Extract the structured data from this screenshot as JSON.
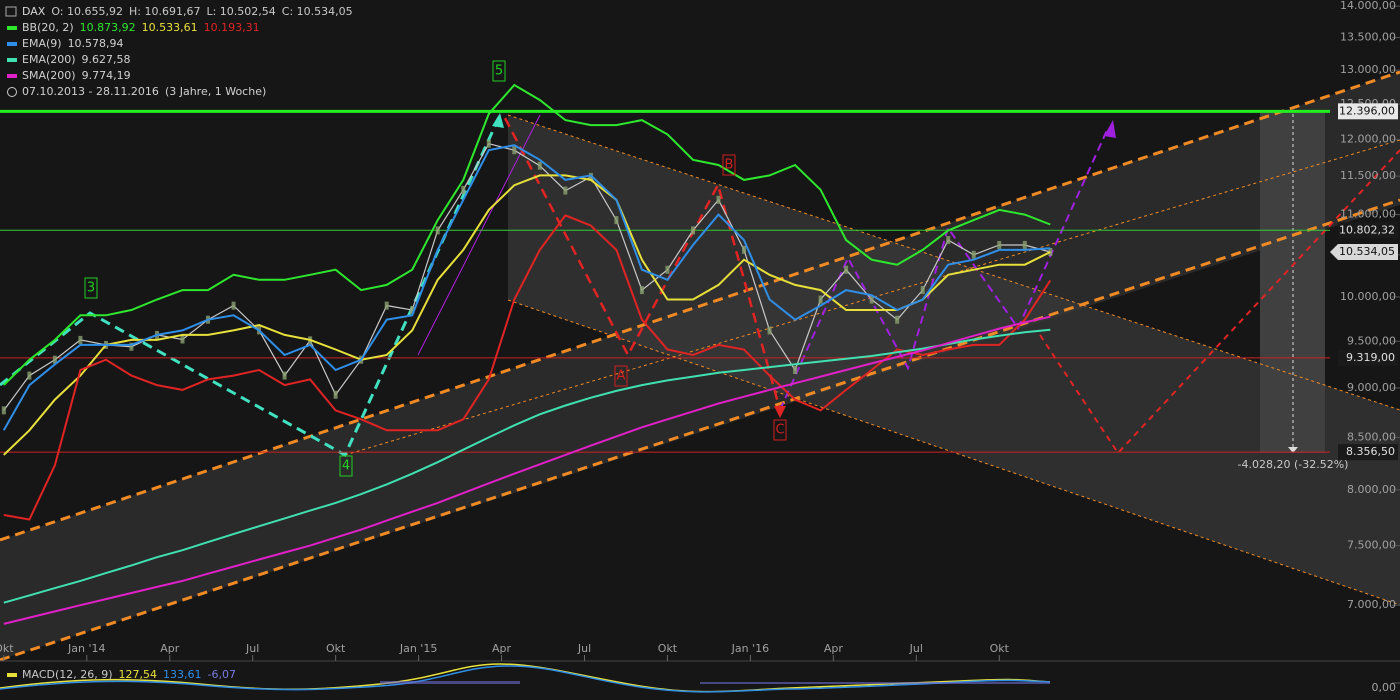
{
  "chart_data": {
    "type": "line",
    "title": "DAX",
    "period": "07.10.2013 - 28.11.2016",
    "period_note": "(3 Jahre, 1 Woche)",
    "log_scale": true,
    "ylim": [
      6570,
      14100
    ],
    "xlim": [
      -0.6,
      218.8
    ],
    "yticks": [
      {
        "value": 7000,
        "label": "7.000,00"
      },
      {
        "value": 7500,
        "label": "7.500,00"
      },
      {
        "value": 8000,
        "label": "8.000,00"
      },
      {
        "value": 8500,
        "label": "8.500,00"
      },
      {
        "value": 9000,
        "label": "9.000,00"
      },
      {
        "value": 9500,
        "label": "9.500,00"
      },
      {
        "value": 10000,
        "label": "10.000,00"
      },
      {
        "value": 10500,
        "label": "10.500,00"
      },
      {
        "value": 11000,
        "label": "11.000,00"
      },
      {
        "value": 11500,
        "label": "11.500,00"
      },
      {
        "value": 12000,
        "label": "12.000,00"
      },
      {
        "value": 12500,
        "label": "12.500,00"
      },
      {
        "value": 13000,
        "label": "13.000,00"
      },
      {
        "value": 13500,
        "label": "13.500,00"
      },
      {
        "value": 14000,
        "label": "14.000,00"
      }
    ],
    "xticks": [
      {
        "value": 0,
        "label": "Okt"
      },
      {
        "value": 13,
        "label": "Jan '14"
      },
      {
        "value": 26,
        "label": "Apr"
      },
      {
        "value": 39,
        "label": "Jul"
      },
      {
        "value": 52,
        "label": "Okt"
      },
      {
        "value": 65,
        "label": "Jan '15"
      },
      {
        "value": 78,
        "label": "Apr"
      },
      {
        "value": 91,
        "label": "Jul"
      },
      {
        "value": 104,
        "label": "Okt"
      },
      {
        "value": 117,
        "label": "Jan '16"
      },
      {
        "value": 130,
        "label": "Apr"
      },
      {
        "value": 143,
        "label": "Jul"
      },
      {
        "value": 156,
        "label": "Okt"
      }
    ],
    "x": [
      0,
      4,
      8,
      12,
      16,
      20,
      24,
      28,
      32,
      36,
      40,
      44,
      48,
      52,
      56,
      60,
      64,
      68,
      72,
      76,
      80,
      84,
      88,
      92,
      96,
      100,
      104,
      108,
      112,
      116,
      120,
      124,
      128,
      132,
      136,
      140,
      144,
      148,
      152,
      156,
      160,
      164
    ],
    "series": [
      {
        "name": "DAX",
        "color": "#c8c8c8",
        "legend_values": [
          "O: 10.655,92",
          "H: 10.691,67",
          "L: 10.502,54",
          "C: 10.534,05"
        ],
        "values": [
          8770,
          9130,
          9300,
          9515,
          9460,
          9440,
          9570,
          9520,
          9740,
          9900,
          9620,
          9130,
          9510,
          8930,
          9300,
          9900,
          9850,
          10800,
          11320,
          11940,
          11850,
          11640,
          11310,
          11490,
          10930,
          10080,
          10320,
          10800,
          11190,
          10560,
          9620,
          9190,
          9970,
          10320,
          9970,
          9740,
          10080,
          10680,
          10500,
          10620,
          10620,
          10534.05
        ]
      },
      {
        "name": "BB(20, 2)",
        "color": "#2ee82e",
        "middle_color": "#e8e03a",
        "lower_color": "#e02424",
        "legend_values": [
          "10.873,92",
          "10.533,61",
          "10.193,31"
        ],
        "values": [
          9030,
          9300,
          9515,
          9790,
          9790,
          9850,
          9970,
          10080,
          10080,
          10260,
          10200,
          10200,
          10260,
          10320,
          10080,
          10140,
          10320,
          10930,
          11450,
          12360,
          12780,
          12560,
          12270,
          12200,
          12200,
          12270,
          12070,
          11720,
          11650,
          11450,
          11510,
          11650,
          11320,
          10680,
          10440,
          10380,
          10560,
          10800,
          10930,
          11060,
          11000,
          10873.92
        ],
        "middle": [
          8330,
          8570,
          8880,
          9130,
          9460,
          9515,
          9515,
          9570,
          9570,
          9620,
          9680,
          9570,
          9515,
          9410,
          9300,
          9350,
          9620,
          10200,
          10560,
          11060,
          11380,
          11510,
          11510,
          11450,
          11190,
          10440,
          9970,
          9970,
          10140,
          10440,
          10260,
          10140,
          10080,
          9850,
          9850,
          9850,
          9970,
          10260,
          10320,
          10380,
          10380,
          10533.61
        ],
        "lower": [
          7770,
          7730,
          8230,
          9190,
          9300,
          9130,
          9030,
          8980,
          9090,
          9130,
          9190,
          9030,
          9090,
          8770,
          8680,
          8570,
          8570,
          8570,
          8680,
          9090,
          9970,
          10560,
          10990,
          10860,
          10560,
          9740,
          9410,
          9350,
          9460,
          9410,
          9130,
          8880,
          8770,
          8980,
          9190,
          9410,
          9350,
          9410,
          9460,
          9460,
          9740,
          10193.31
        ]
      },
      {
        "name": "EMA(9)",
        "color": "#2f8fe8",
        "legend_values": [
          "10.578,94"
        ],
        "values": [
          8570,
          9030,
          9250,
          9460,
          9460,
          9460,
          9570,
          9620,
          9740,
          9790,
          9620,
          9350,
          9460,
          9190,
          9300,
          9740,
          9790,
          10560,
          11190,
          11850,
          11920,
          11720,
          11450,
          11510,
          11190,
          10320,
          10200,
          10620,
          11000,
          10680,
          9970,
          9740,
          9900,
          10080,
          10020,
          9850,
          9970,
          10380,
          10440,
          10560,
          10560,
          10578.94
        ]
      },
      {
        "name": "EMA(200)",
        "color": "#40e0b0",
        "legend_values": [
          "9.627,58"
        ],
        "values": [
          7020,
          7080,
          7140,
          7200,
          7265,
          7330,
          7400,
          7460,
          7530,
          7600,
          7670,
          7740,
          7810,
          7880,
          7960,
          8050,
          8150,
          8260,
          8380,
          8500,
          8620,
          8730,
          8820,
          8900,
          8970,
          9030,
          9080,
          9120,
          9160,
          9190,
          9220,
          9250,
          9280,
          9310,
          9340,
          9380,
          9420,
          9470,
          9520,
          9560,
          9600,
          9627.58
        ]
      },
      {
        "name": "SMA(200)",
        "color": "#e020c8",
        "legend_values": [
          "9.774,19"
        ],
        "values": [
          6850,
          6900,
          6950,
          7000,
          7050,
          7100,
          7150,
          7200,
          7260,
          7320,
          7380,
          7440,
          7500,
          7570,
          7640,
          7720,
          7800,
          7880,
          7970,
          8060,
          8150,
          8240,
          8330,
          8420,
          8510,
          8600,
          8680,
          8760,
          8840,
          8910,
          8980,
          9050,
          9120,
          9190,
          9260,
          9330,
          9400,
          9480,
          9560,
          9640,
          9710,
          9774.19
        ]
      }
    ],
    "hlines": [
      {
        "value": 12396,
        "label": "12.396,00",
        "color": "#22ee22",
        "width": 3,
        "label_bg": "#e8e8e8",
        "label_color": "#111111"
      },
      {
        "value": 10802.32,
        "label": "10.802,32",
        "color": "#33cc33",
        "width": 1,
        "label_bg": "#1a1a1a",
        "label_color": "#e0e0e0"
      },
      {
        "value": 9319,
        "label": "9.319,00",
        "color": "#cc2222",
        "width": 1,
        "label_bg": "#1a1a1a",
        "label_color": "#e0e0e0"
      },
      {
        "value": 8356.5,
        "label": "8.356,50",
        "color": "#cc2222",
        "width": 1,
        "label_bg": "#1a1a1a",
        "label_color": "#e0e0e0"
      }
    ],
    "last_price_label": "10.534,05",
    "waves": [
      {
        "label": "3",
        "color": "#22cc22"
      },
      {
        "label": "4",
        "color": "#22cc22"
      },
      {
        "label": "5",
        "color": "#22cc22"
      },
      {
        "label": "A",
        "color": "#d02020"
      },
      {
        "label": "B",
        "color": "#d02020"
      },
      {
        "label": "C",
        "color": "#d02020"
      }
    ],
    "measure_label": "-4.028,20 (-32.52%)",
    "macd": {
      "name": "MACD(12, 26, 9)",
      "legend_values": [
        "127,54",
        "133,61",
        "-6,07"
      ],
      "yticks": [
        {
          "value": 0,
          "label": "0,00"
        }
      ]
    }
  }
}
